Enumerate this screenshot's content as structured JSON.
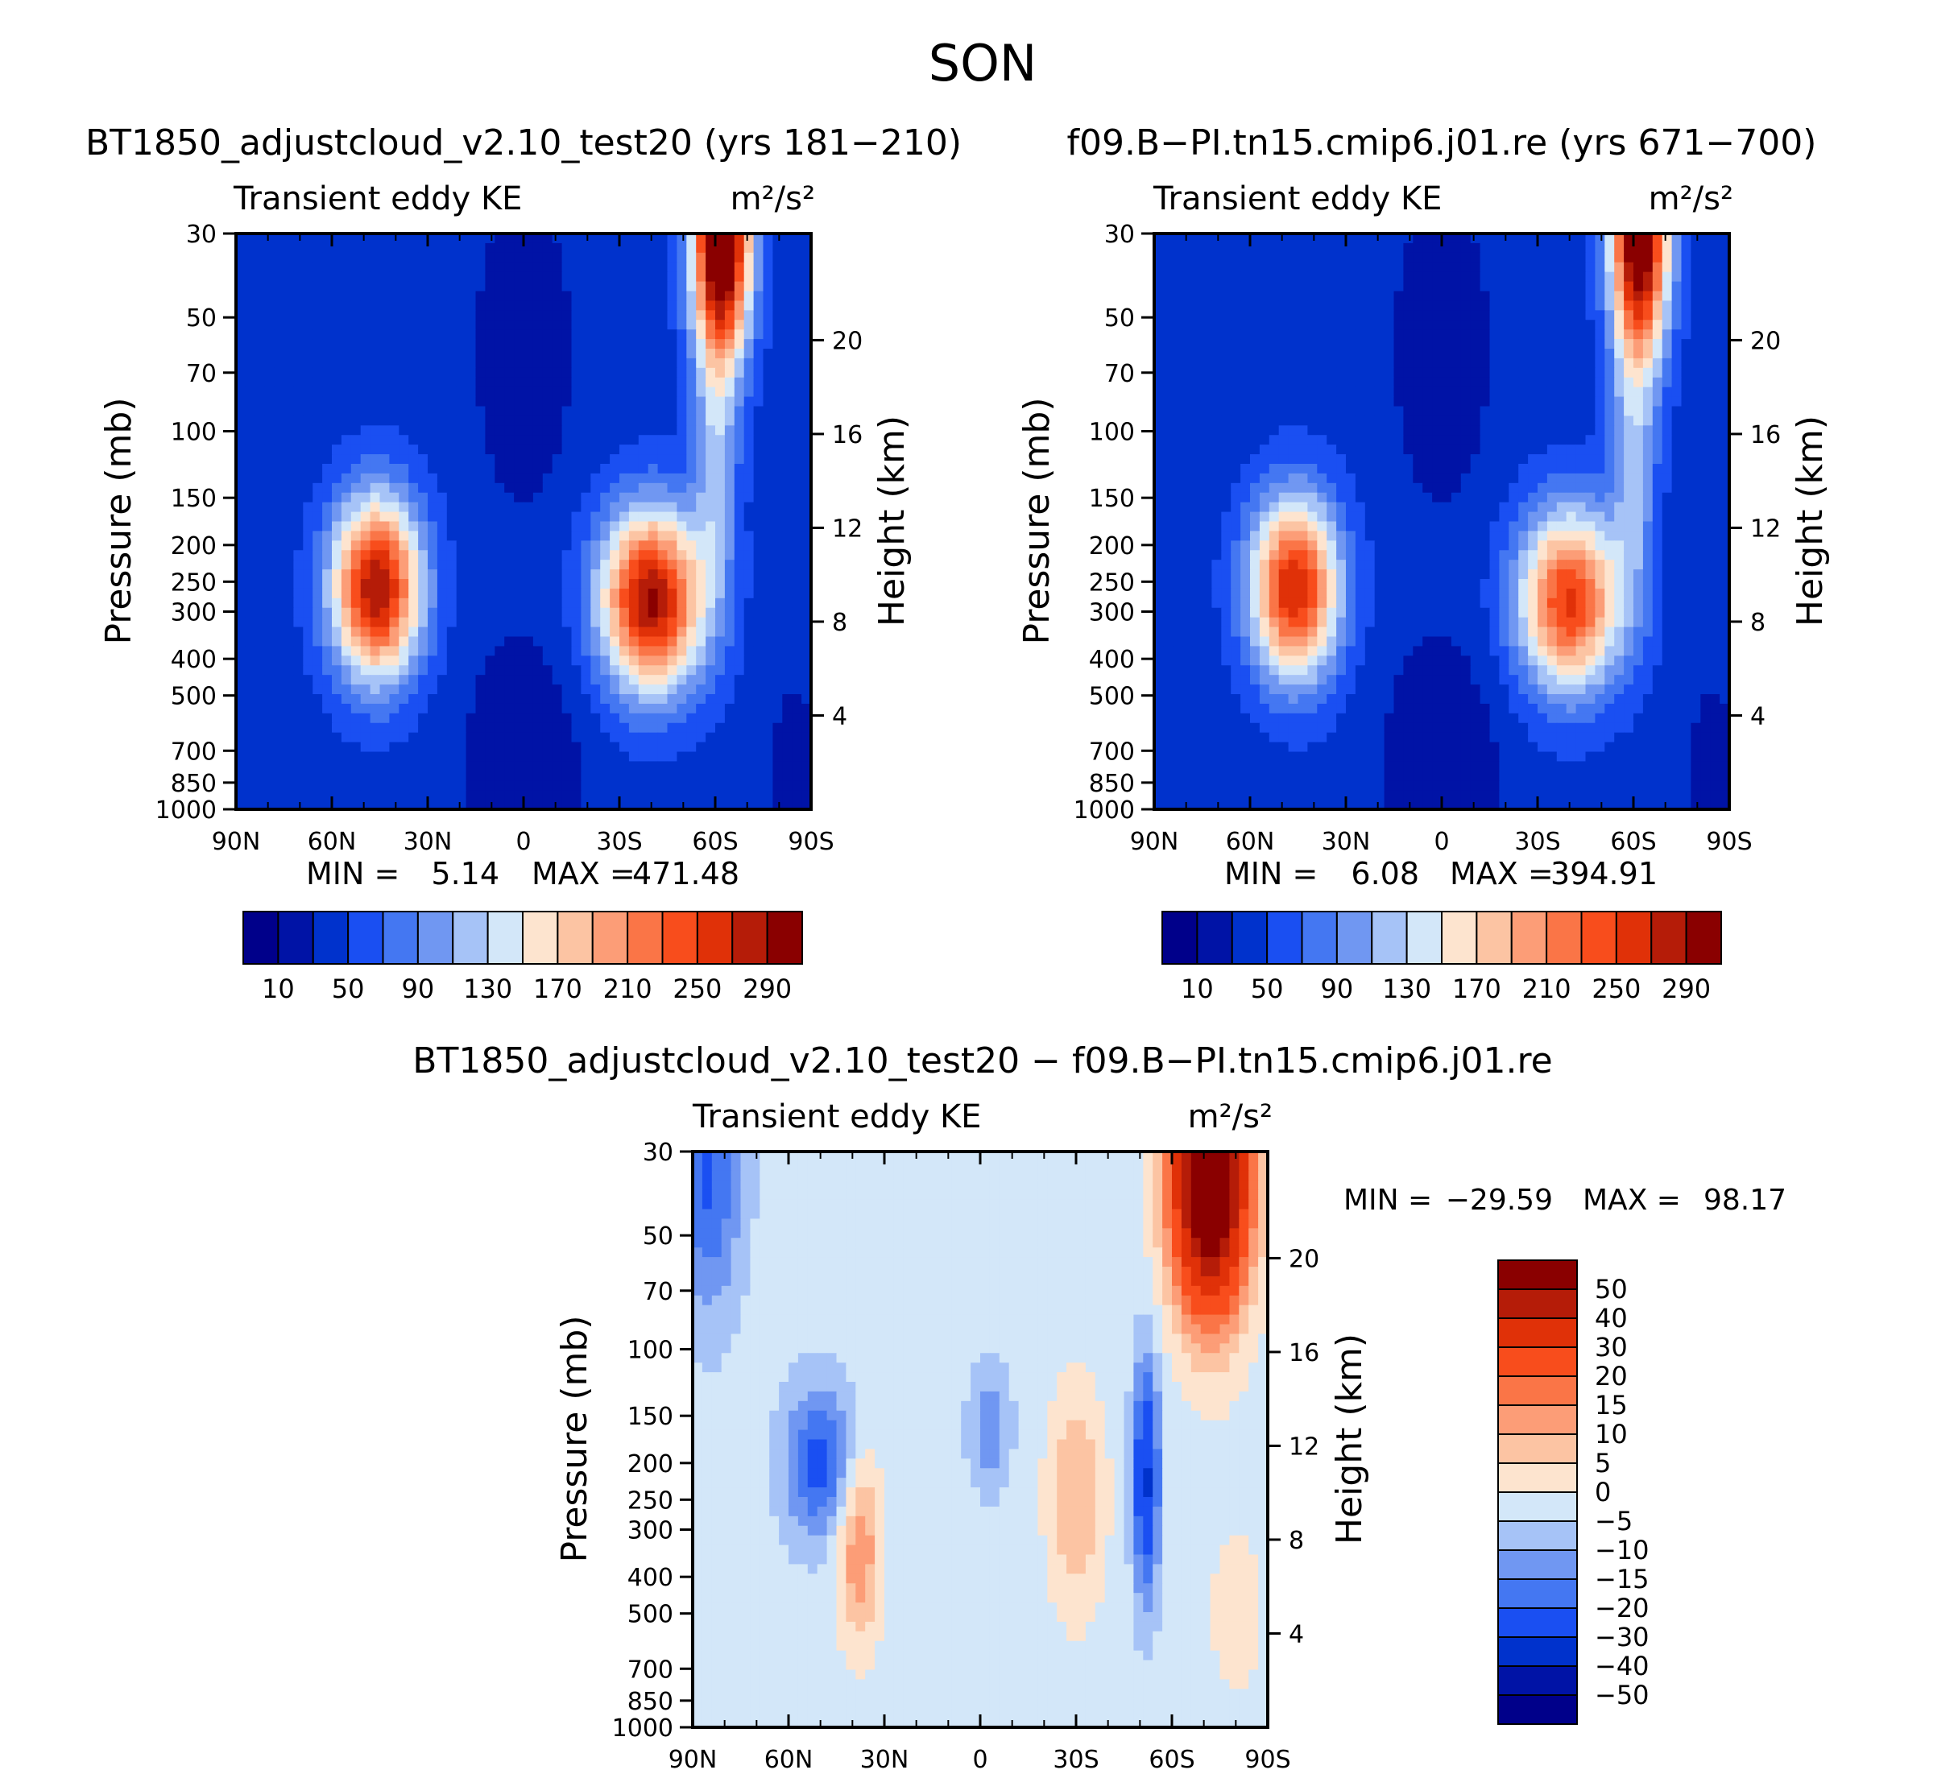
{
  "figure": {
    "title": "SON"
  },
  "pressure_ticks": [
    30,
    50,
    70,
    100,
    150,
    200,
    250,
    300,
    400,
    500,
    700,
    850,
    1000
  ],
  "height_ticks": [
    4,
    8,
    12,
    16,
    20
  ],
  "lat_ticks": [
    "90N",
    "60N",
    "30N",
    "0",
    "30S",
    "60S",
    "90S"
  ],
  "chart_data": [
    {
      "type": "heatmap",
      "id": "panel-test",
      "title": "BT1850_adjustcloud_v2.10_test20 (yrs 181−210)",
      "subtitle_left": "Transient eddy KE",
      "units": "m²/s²",
      "xlabel": "",
      "ylabel": "Pressure (mb)",
      "y2label": "Height (km)",
      "x_range": [
        "90N",
        "90S"
      ],
      "y_range_mb": [
        30,
        1000
      ],
      "min_label": "MIN =",
      "min_value": "5.14",
      "max_label": "MAX =",
      "max_value": "471.48",
      "colorbar_labels": [
        "10",
        "50",
        "90",
        "130",
        "170",
        "210",
        "250",
        "290"
      ],
      "colorbar_levels": [
        10,
        30,
        50,
        70,
        90,
        110,
        130,
        150,
        170,
        190,
        210,
        230,
        250,
        270,
        290
      ],
      "features": [
        {
          "lat": -62,
          "p": 30,
          "value": 330
        },
        {
          "lat": 46,
          "p": 250,
          "value": 285
        },
        {
          "lat": -40,
          "p": 270,
          "value": 290
        },
        {
          "lat": 0,
          "p": 60,
          "value": 5
        },
        {
          "lat": 0,
          "p": 900,
          "value": 5
        }
      ]
    },
    {
      "type": "heatmap",
      "id": "panel-ctrl",
      "title": "f09.B−PI.tn15.cmip6.j01.re (yrs 671−700)",
      "subtitle_left": "Transient eddy KE",
      "units": "m²/s²",
      "xlabel": "",
      "ylabel": "Pressure (mb)",
      "y2label": "Height (km)",
      "x_range": [
        "90N",
        "90S"
      ],
      "y_range_mb": [
        30,
        1000
      ],
      "min_label": "MIN =",
      "min_value": "6.08",
      "max_label": "MAX =",
      "max_value": "394.91",
      "colorbar_labels": [
        "10",
        "50",
        "90",
        "130",
        "170",
        "210",
        "250",
        "290"
      ],
      "colorbar_levels": [
        10,
        30,
        50,
        70,
        90,
        110,
        130,
        150,
        170,
        190,
        210,
        230,
        250,
        270,
        290
      ],
      "features": [
        {
          "lat": -62,
          "p": 30,
          "value": 300
        },
        {
          "lat": 46,
          "p": 250,
          "value": 265
        },
        {
          "lat": -42,
          "p": 280,
          "value": 250
        },
        {
          "lat": 0,
          "p": 60,
          "value": 5
        },
        {
          "lat": 0,
          "p": 900,
          "value": 5
        }
      ]
    },
    {
      "type": "heatmap",
      "id": "panel-diff",
      "title": "BT1850_adjustcloud_v2.10_test20 − f09.B−PI.tn15.cmip6.j01.re",
      "subtitle_left": "Transient eddy KE",
      "units": "m²/s²",
      "xlabel": "",
      "ylabel": "Pressure (mb)",
      "y2label": "Height (km)",
      "x_range": [
        "90N",
        "90S"
      ],
      "y_range_mb": [
        30,
        1000
      ],
      "min_label": "MIN =",
      "min_value": "−29.59",
      "max_label": "MAX =",
      "max_value": "98.17",
      "colorbar_labels": [
        "50",
        "40",
        "30",
        "20",
        "15",
        "10",
        "5",
        "0",
        "−5",
        "−10",
        "−15",
        "−20",
        "−30",
        "−40",
        "−50"
      ],
      "colorbar_levels": [
        -50,
        -40,
        -30,
        -20,
        -15,
        -10,
        -5,
        0,
        5,
        10,
        15,
        20,
        30,
        40,
        50
      ],
      "features": [
        {
          "lat": -72,
          "p": 35,
          "value": 60
        },
        {
          "lat": 50,
          "p": 200,
          "value": -20
        },
        {
          "lat": 38,
          "p": 330,
          "value": 18
        },
        {
          "lat": -30,
          "p": 250,
          "value": 13
        },
        {
          "lat": -52,
          "p": 220,
          "value": -28
        },
        {
          "lat": -3,
          "p": 160,
          "value": -12
        }
      ]
    }
  ],
  "palette": {
    "sequential": [
      "#00008a",
      "#0013a6",
      "#0032cc",
      "#1a4ff2",
      "#4477f2",
      "#7097f2",
      "#a6c3f7",
      "#d3e7f9",
      "#fde4cf",
      "#fcc4a3",
      "#fc9d77",
      "#fa7547",
      "#f84d1c",
      "#e03108",
      "#b51c08",
      "#8a0000"
    ],
    "diverging": [
      "#8a0000",
      "#b51c08",
      "#e03108",
      "#f84d1c",
      "#fa7547",
      "#fc9d77",
      "#fcc4a3",
      "#fde4cf",
      "#d3e7f9",
      "#a6c3f7",
      "#7097f2",
      "#4477f2",
      "#1a4ff2",
      "#0032cc",
      "#0013a6",
      "#00008a"
    ]
  }
}
